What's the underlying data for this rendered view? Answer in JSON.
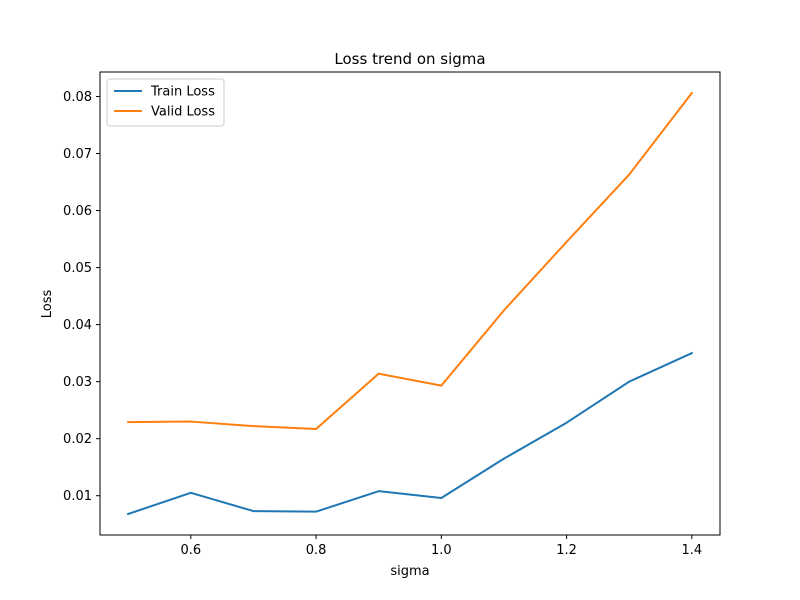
{
  "chart_data": {
    "type": "line",
    "title": "Loss trend on sigma",
    "xlabel": "sigma",
    "ylabel": "Loss",
    "x": [
      0.5,
      0.6,
      0.7,
      0.8,
      0.9,
      1.0,
      1.1,
      1.2,
      1.3,
      1.4
    ],
    "series": [
      {
        "name": "Train Loss",
        "color": "#1f77b4",
        "values": [
          0.0068,
          0.0105,
          0.0073,
          0.0072,
          0.0108,
          0.0096,
          0.0165,
          0.0228,
          0.03,
          0.035
        ]
      },
      {
        "name": "Valid Loss",
        "color": "#ff7f0e",
        "values": [
          0.0229,
          0.023,
          0.0222,
          0.0217,
          0.0314,
          0.0293,
          0.0425,
          0.0545,
          0.0663,
          0.0806
        ]
      }
    ],
    "xlim": [
      0.455,
      1.445
    ],
    "ylim": [
      0.00311,
      0.08429
    ],
    "xticks": [
      "0.6",
      "0.8",
      "1.0",
      "1.2",
      "1.4"
    ],
    "xtick_values": [
      0.6,
      0.8,
      1.0,
      1.2,
      1.4
    ],
    "yticks": [
      "0.01",
      "0.02",
      "0.03",
      "0.04",
      "0.05",
      "0.06",
      "0.07",
      "0.08"
    ],
    "ytick_values": [
      0.01,
      0.02,
      0.03,
      0.04,
      0.05,
      0.06,
      0.07,
      0.08
    ],
    "legend": "top-left",
    "grid": false
  }
}
